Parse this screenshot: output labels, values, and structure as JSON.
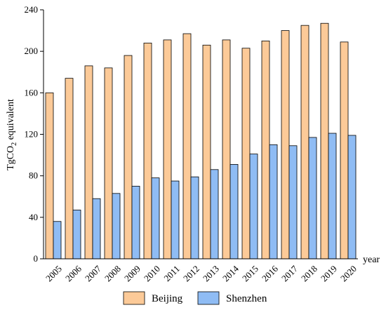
{
  "chart_data": {
    "type": "bar",
    "title": "",
    "xlabel": "year",
    "ylabel": "TgCO",
    "ylabel_subscript": "2",
    "ylabel_suffix": " equivalent",
    "ylim": [
      0,
      240
    ],
    "yticks": [
      0,
      40,
      80,
      120,
      160,
      200,
      240
    ],
    "grid": false,
    "legend_position": "bottom",
    "categories": [
      "2005",
      "2006",
      "2007",
      "2008",
      "2009",
      "2010",
      "2011",
      "2012",
      "2013",
      "2014",
      "2015",
      "2016",
      "2017",
      "2018",
      "2019",
      "2020"
    ],
    "series": [
      {
        "name": "Beijing",
        "color": "#FCCA98",
        "values": [
          160,
          174,
          186,
          184,
          196,
          208,
          211,
          217,
          206,
          211,
          203,
          210,
          220,
          225,
          227,
          209
        ]
      },
      {
        "name": "Shenzhen",
        "color": "#8FBCF4",
        "values": [
          36,
          47,
          58,
          63,
          70,
          78,
          75,
          79,
          86,
          91,
          101,
          110,
          109,
          117,
          121,
          119
        ]
      }
    ]
  }
}
